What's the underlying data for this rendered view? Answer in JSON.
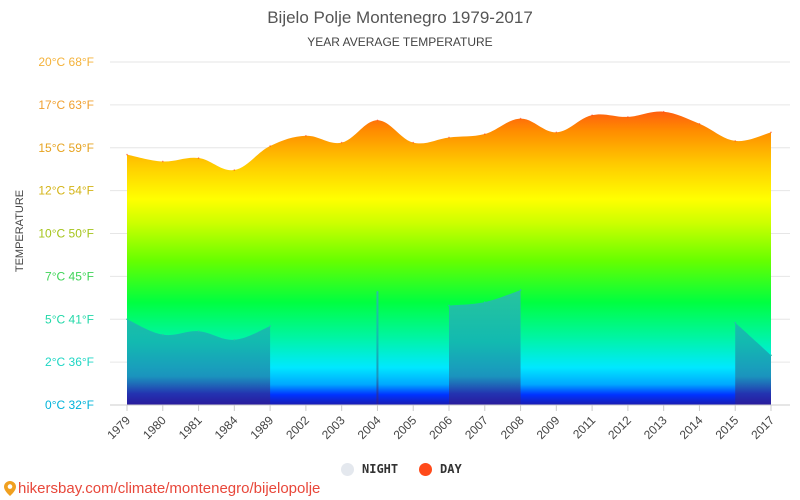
{
  "chart_data": {
    "type": "area",
    "title": "Bijelo Polje Montenegro 1979-2017",
    "subtitle": "YEAR AVERAGE TEMPERATURE",
    "ylabel": "TEMPERATURE",
    "ylim": [
      0,
      20
    ],
    "y_ticks": [
      {
        "value": 0,
        "label": "0°C 32°F",
        "color": "#00b3d9"
      },
      {
        "value": 2.5,
        "label": "2°C 36°F",
        "color": "#1fd6c4"
      },
      {
        "value": 5,
        "label": "5°C 41°F",
        "color": "#22d8a8"
      },
      {
        "value": 7.5,
        "label": "7°C 45°F",
        "color": "#3ed457"
      },
      {
        "value": 10,
        "label": "10°C 50°F",
        "color": "#a5c41a"
      },
      {
        "value": 12.5,
        "label": "12°C 54°F",
        "color": "#d4b416"
      },
      {
        "value": 15,
        "label": "15°C 59°F",
        "color": "#e6a320"
      },
      {
        "value": 17.5,
        "label": "17°C 63°F",
        "color": "#f0a030"
      },
      {
        "value": 20,
        "label": "20°C 68°F",
        "color": "#f4b23a"
      }
    ],
    "categories": [
      "1979",
      "1980",
      "1981",
      "1984",
      "1989",
      "2002",
      "2003",
      "2004",
      "2005",
      "2006",
      "2007",
      "2008",
      "2009",
      "2011",
      "2012",
      "2013",
      "2014",
      "2015",
      "2017"
    ],
    "series": [
      {
        "name": "DAY",
        "color": "#ff4a1a",
        "values": [
          14.6,
          14.2,
          14.4,
          13.7,
          15.1,
          15.7,
          15.3,
          16.6,
          15.3,
          15.6,
          15.8,
          16.7,
          15.9,
          16.9,
          16.8,
          17.1,
          16.4,
          15.4,
          15.9
        ]
      },
      {
        "name": "NIGHT",
        "color": "#e4e8ee",
        "values": [
          5.0,
          4.1,
          4.3,
          3.8,
          4.6,
          null,
          null,
          6.6,
          null,
          5.8,
          6.0,
          6.7,
          null,
          null,
          null,
          null,
          null,
          4.8,
          2.9
        ]
      }
    ],
    "legend_placement": "bottom-center",
    "grid": true
  },
  "legend": {
    "night_label": "NIGHT",
    "day_label": "DAY",
    "night_color": "#e4e8ee",
    "day_color": "#ff4a1a"
  },
  "footer": {
    "url_text": "hikersbay.com/climate/montenegro/bijelopolje",
    "icon": "map-pin-icon"
  }
}
